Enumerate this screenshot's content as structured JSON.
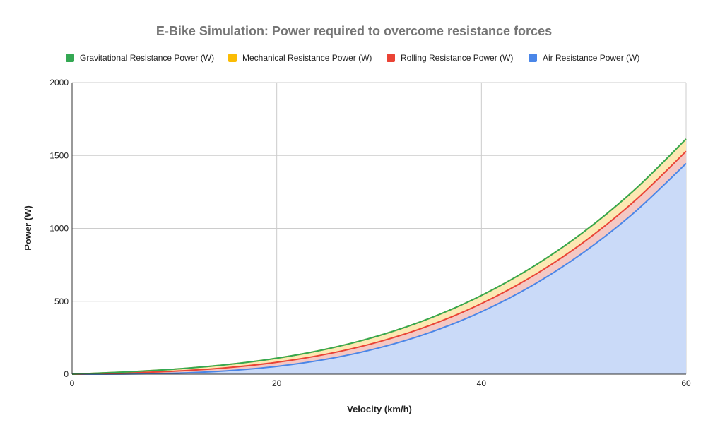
{
  "chart_data": {
    "type": "area",
    "stacked": true,
    "title": "E-Bike Simulation: Power required to overcome resistance forces",
    "xlabel": "Velocity (km/h)",
    "ylabel": "Power (W)",
    "xlim": [
      0,
      60
    ],
    "ylim": [
      0,
      2000
    ],
    "x_ticks": [
      "0",
      "20",
      "40",
      "60"
    ],
    "y_ticks": [
      "0",
      "500",
      "1000",
      "1500",
      "2000"
    ],
    "grid": true,
    "legend_position": "top",
    "x": [
      0,
      5,
      10,
      15,
      20,
      25,
      30,
      35,
      40,
      45,
      50,
      55,
      60
    ],
    "series": [
      {
        "name": "Air Resistance Power (W)",
        "color": "#4a86e8",
        "fill": "#c9daf8",
        "values": [
          0,
          0.8,
          6.7,
          22.6,
          53.5,
          104.5,
          180.6,
          286.8,
          428.1,
          609.5,
          836.1,
          1112.8,
          1444.8
        ]
      },
      {
        "name": "Rolling Resistance Power (W)",
        "color": "#ea4335",
        "fill": "#f4c7c3",
        "values": [
          0,
          7.0,
          14.0,
          21.0,
          28.0,
          35.0,
          42.0,
          49.0,
          56.0,
          63.0,
          70.0,
          77.0,
          84.0
        ]
      },
      {
        "name": "Mechanical Resistance Power (W)",
        "color": "#fbbc04",
        "fill": "#fce8b2",
        "values": [
          0,
          7.0,
          14.0,
          21.0,
          28.0,
          35.0,
          42.0,
          49.0,
          56.0,
          63.0,
          70.0,
          77.0,
          84.0
        ]
      },
      {
        "name": "Gravitational Resistance Power (W)",
        "color": "#34a853",
        "fill": "#b7e1cd",
        "values": [
          0,
          0,
          0,
          0,
          0,
          0,
          0,
          0,
          0,
          0,
          0,
          0,
          0
        ]
      }
    ],
    "legend_order": [
      "Gravitational Resistance Power (W)",
      "Mechanical Resistance Power (W)",
      "Rolling Resistance Power (W)",
      "Air Resistance Power (W)"
    ]
  }
}
